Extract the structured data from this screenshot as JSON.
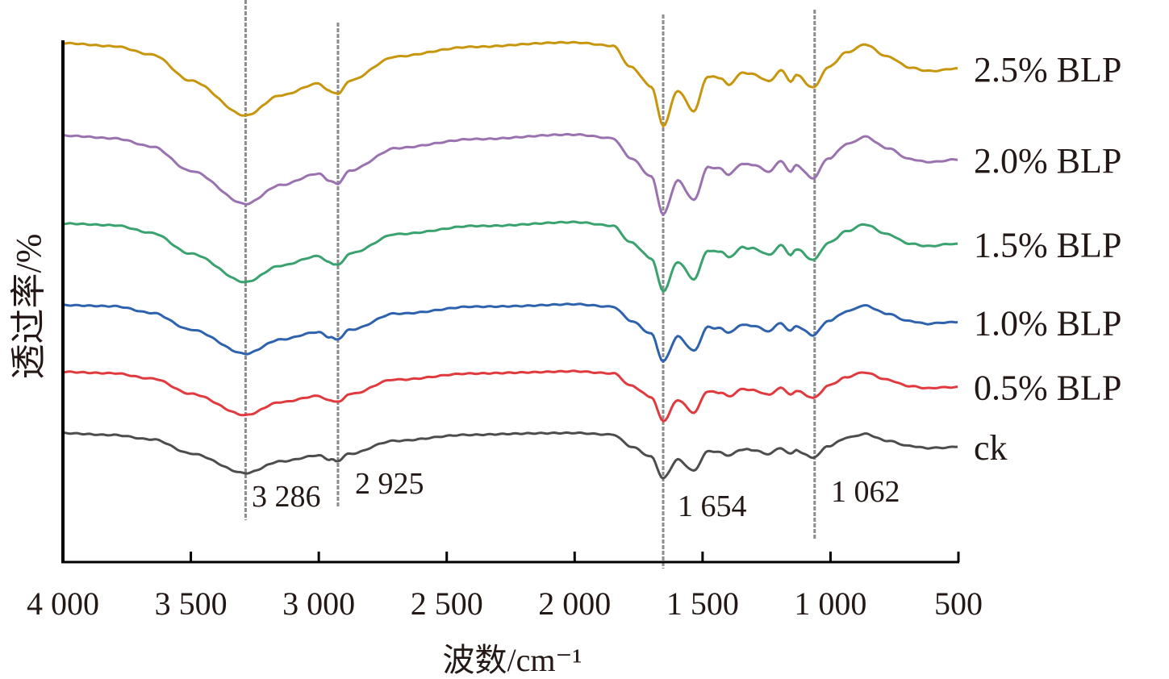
{
  "chart_data": {
    "type": "line",
    "title": "",
    "xlabel": "波数/cm⁻¹",
    "ylabel": "透过率/%",
    "xlim": [
      4000,
      500
    ],
    "ylim": [
      0,
      100
    ],
    "grid": false,
    "legend": "right-of-curves",
    "x_ticks": [
      4000,
      3500,
      3000,
      2500,
      2000,
      1500,
      1000,
      500
    ],
    "x_tick_labels": [
      "4 000",
      "3 500",
      "3 000",
      "2 500",
      "2 000",
      "1 500",
      "1 000",
      "500"
    ],
    "reference_lines": [
      {
        "x": 3286,
        "label": "3 286"
      },
      {
        "x": 2925,
        "label": "2 925"
      },
      {
        "x": 1654,
        "label": "1 654"
      },
      {
        "x": 1062,
        "label": "1 062"
      }
    ],
    "x": [
      4000,
      3800,
      3650,
      3500,
      3286,
      3150,
      3000,
      2960,
      2925,
      2880,
      2700,
      2400,
      2000,
      1850,
      1780,
      1700,
      1654,
      1597,
      1534,
      1480,
      1430,
      1398,
      1345,
      1303,
      1240,
      1194,
      1156,
      1134,
      1068,
      1008,
      935,
      866,
      778,
      692,
      620,
      503
    ],
    "series": [
      {
        "name": "2.5% BLP",
        "color": "#c8960c",
        "values": [
          99.4,
          98.9,
          97.2,
          92.3,
          85.6,
          89.5,
          91.7,
          90.3,
          89.7,
          92.3,
          96.9,
          98.8,
          99.6,
          98.9,
          94.9,
          91.2,
          83.5,
          90.4,
          86.4,
          93.1,
          92.8,
          91.5,
          93.8,
          93.5,
          92.1,
          94.3,
          92.1,
          93.4,
          90.9,
          94.9,
          97.7,
          99.2,
          96.9,
          94.8,
          94.1,
          94.6
        ]
      },
      {
        "name": "2.0% BLP",
        "color": "#9b72b0",
        "values": [
          81.7,
          81.2,
          79.6,
          75.0,
          68.6,
          72.3,
          74.4,
          73.1,
          72.5,
          75.0,
          79.3,
          81.1,
          81.9,
          81.2,
          77.4,
          73.9,
          66.6,
          73.1,
          69.3,
          75.7,
          75.4,
          74.2,
          76.4,
          76.1,
          74.8,
          76.9,
          74.8,
          76.0,
          73.6,
          77.4,
          80.1,
          81.5,
          79.3,
          77.3,
          76.7,
          77.1
        ]
      },
      {
        "name": "1.5% BLP",
        "color": "#3aa26e",
        "values": [
          64.9,
          64.5,
          63.1,
          59.1,
          53.6,
          56.8,
          58.6,
          57.4,
          56.9,
          59.1,
          62.8,
          64.4,
          65.1,
          64.5,
          61.2,
          58.2,
          51.9,
          57.5,
          54.2,
          59.7,
          59.5,
          58.4,
          60.3,
          60.1,
          58.9,
          60.7,
          58.9,
          60.0,
          57.9,
          61.2,
          63.5,
          64.7,
          62.8,
          61.1,
          60.6,
          61.0
        ]
      },
      {
        "name": "1.0% BLP",
        "color": "#2f62ad",
        "values": [
          49.3,
          49.0,
          47.8,
          44.5,
          39.9,
          42.6,
          44.1,
          43.1,
          42.7,
          44.5,
          47.6,
          48.9,
          49.4,
          49.0,
          46.2,
          43.7,
          38.5,
          43.2,
          40.5,
          45.0,
          44.8,
          43.9,
          45.5,
          45.3,
          44.3,
          45.8,
          44.3,
          45.2,
          43.5,
          46.2,
          48.1,
          49.2,
          47.6,
          46.2,
          45.7,
          46.0
        ]
      },
      {
        "name": "0.5% BLP",
        "color": "#e0393e",
        "values": [
          36.5,
          36.2,
          35.2,
          32.2,
          28.2,
          30.6,
          31.9,
          31.0,
          30.7,
          32.2,
          35.0,
          36.1,
          36.6,
          36.2,
          33.8,
          31.6,
          27.0,
          31.1,
          28.7,
          32.7,
          32.5,
          31.8,
          33.1,
          33.0,
          32.1,
          33.4,
          32.1,
          32.9,
          31.4,
          33.8,
          35.5,
          36.4,
          35.0,
          33.7,
          33.3,
          33.6
        ]
      },
      {
        "name": "ck",
        "color": "#4d4d4d",
        "values": [
          24.7,
          24.4,
          23.5,
          20.8,
          17.1,
          19.3,
          20.5,
          19.7,
          19.4,
          20.8,
          23.3,
          24.4,
          24.8,
          24.4,
          22.2,
          20.2,
          16.0,
          19.7,
          17.5,
          21.2,
          21.1,
          20.4,
          21.6,
          21.5,
          20.7,
          21.9,
          20.7,
          21.4,
          20.0,
          22.2,
          23.8,
          24.6,
          23.3,
          22.2,
          21.8,
          22.1
        ]
      }
    ]
  }
}
